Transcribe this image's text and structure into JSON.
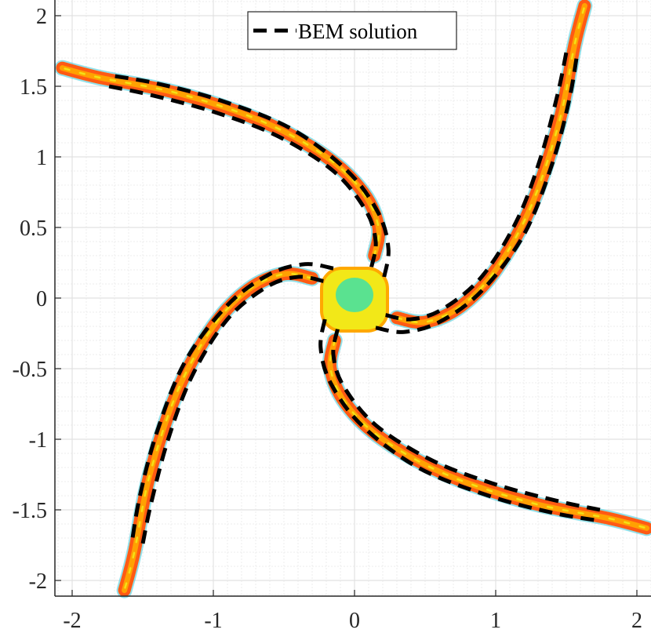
{
  "chart_data": {
    "type": "scatter",
    "title": "",
    "xlabel": "",
    "ylabel": "",
    "xlim": [
      -2.1,
      2.1
    ],
    "ylim": [
      -2.1,
      2.1
    ],
    "grid": "on (major and minor)",
    "legend_placement": "top-center",
    "xticks": [
      -2,
      -1,
      0,
      1,
      2
    ],
    "yticks": [
      -2,
      -1.5,
      -1,
      -0.5,
      0,
      0.5,
      1,
      1.5,
      2
    ],
    "x_tick_labels": [
      "-2",
      "-1",
      "0",
      "1",
      "2"
    ],
    "y_tick_labels": [
      "-2",
      "-1.5",
      "-1",
      "-0.5",
      "0",
      "0.5",
      "1",
      "1.5",
      "2"
    ],
    "legend": [
      {
        "label": "BEM solution",
        "style": "black dashed line"
      }
    ],
    "colors": {
      "particles_outer": "#ff5a14",
      "particles_mid": "#ffa800",
      "particles_inner": "#f2e818",
      "core": "#3fe0a6",
      "edge": "#3ac8d8",
      "bem_line": "#000000",
      "grid": "#e2e2e2"
    },
    "bem_outline": {
      "outer": [
        [
          -0.15,
          0.21
        ],
        [
          -0.35,
          0.24
        ],
        [
          -0.6,
          0.17
        ],
        [
          -0.9,
          -0.05
        ],
        [
          -1.2,
          -0.45
        ],
        [
          -1.4,
          -0.95
        ],
        [
          -1.52,
          -1.4
        ],
        [
          -1.58,
          -1.75
        ]
      ],
      "inner": [
        [
          -0.22,
          0.12
        ],
        [
          -0.4,
          0.15
        ],
        [
          -0.62,
          0.08
        ],
        [
          -0.9,
          -0.15
        ],
        [
          -1.15,
          -0.55
        ],
        [
          -1.32,
          -1.0
        ],
        [
          -1.44,
          -1.45
        ],
        [
          -1.5,
          -1.74
        ]
      ]
    },
    "arm_centerline": [
      [
        -0.3,
        0.14
      ],
      [
        -0.5,
        0.17
      ],
      [
        -0.75,
        0.06
      ],
      [
        -1.0,
        -0.2
      ],
      [
        -1.25,
        -0.65
      ],
      [
        -1.45,
        -1.25
      ],
      [
        -1.56,
        -1.8
      ],
      [
        -1.63,
        -2.07
      ]
    ],
    "arms": 4
  }
}
